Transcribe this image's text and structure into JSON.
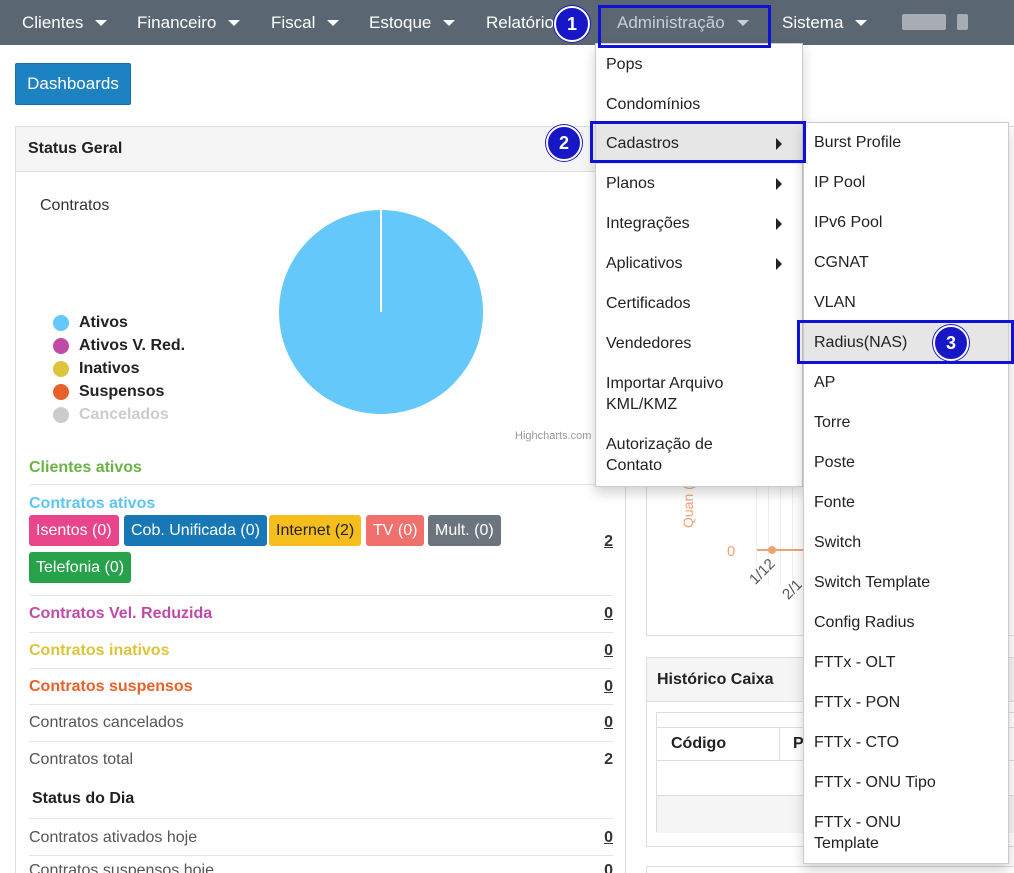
{
  "nav": {
    "items": [
      {
        "label": "Clientes"
      },
      {
        "label": "Financeiro"
      },
      {
        "label": "Fiscal"
      },
      {
        "label": "Estoque"
      },
      {
        "label": "Relatórios"
      },
      {
        "label": "Administração"
      },
      {
        "label": "Sistema"
      }
    ]
  },
  "steps": [
    "1",
    "2",
    "3"
  ],
  "dashboard_button": "Dashboards",
  "status_panel": {
    "title": "Status Geral",
    "chart_title": "Contratos",
    "credits": "Highcharts.com"
  },
  "chart_data": {
    "type": "pie",
    "title": "Contratos",
    "series": [
      {
        "name": "Ativos",
        "value": 2,
        "color": "#64c8fa"
      },
      {
        "name": "Ativos V. Red.",
        "value": 0,
        "color": "#c04aa8"
      },
      {
        "name": "Inativos",
        "value": 0,
        "color": "#dcc43c"
      },
      {
        "name": "Suspensos",
        "value": 0,
        "color": "#e8612a"
      },
      {
        "name": "Cancelados",
        "value": 0,
        "color": "#cccccc"
      }
    ]
  },
  "rows": {
    "clientes_ativos": "Clientes ativos",
    "contratos_ativos": "Contratos ativos",
    "contratos_ativos_val": "2",
    "vel_reduzida": "Contratos Vel. Reduzida",
    "vel_reduzida_val": "0",
    "inativos": "Contratos inativos",
    "inativos_val": "0",
    "suspensos": "Contratos suspensos",
    "suspensos_val": "0",
    "cancelados": "Contratos cancelados",
    "cancelados_val": "0",
    "total": "Contratos total",
    "total_val": "2",
    "status_dia": "Status do Dia",
    "ativados_hoje": "Contratos ativados hoje",
    "ativados_hoje_val": "0",
    "suspensos_hoje": "Contratos suspensos hoje",
    "suspensos_hoje_val": "0"
  },
  "tags": [
    {
      "label": "Isentos (0)",
      "color": "#e8458b"
    },
    {
      "label": "Cob. Unificada (0)",
      "color": "#1878b6"
    },
    {
      "label": "Internet (2)",
      "color": "#f5be1c"
    },
    {
      "label": "TV (0)",
      "color": "#f0706e"
    },
    {
      "label": "Mult. (0)",
      "color": "#6c757d"
    },
    {
      "label": "Telefonia (0)",
      "color": "#28a24a"
    }
  ],
  "right": {
    "historico_caixa": "Histórico Caixa",
    "col_codigo": "Código",
    "col_p": "P",
    "axis_zero": "0",
    "axis_date1": "1/12",
    "axis_date2": "2/1",
    "axis_label": "Quan (cac"
  },
  "admin_menu": [
    {
      "label": "Pops"
    },
    {
      "label": "Condomínios"
    },
    {
      "label": "Cadastros"
    },
    {
      "label": "Planos"
    },
    {
      "label": "Integrações"
    },
    {
      "label": "Aplicativos"
    },
    {
      "label": "Certificados"
    },
    {
      "label": "Vendedores"
    },
    {
      "label": "Importar Arquivo KML/KMZ"
    },
    {
      "label": "Autorização de Contato"
    }
  ],
  "cadastros_menu": [
    {
      "label": "Burst Profile"
    },
    {
      "label": "IP Pool"
    },
    {
      "label": "IPv6 Pool"
    },
    {
      "label": "CGNAT"
    },
    {
      "label": "VLAN"
    },
    {
      "label": "Radius(NAS)"
    },
    {
      "label": "AP"
    },
    {
      "label": "Torre"
    },
    {
      "label": "Poste"
    },
    {
      "label": "Fonte"
    },
    {
      "label": "Switch"
    },
    {
      "label": "Switch Template"
    },
    {
      "label": "Config Radius"
    },
    {
      "label": "FTTx - OLT"
    },
    {
      "label": "FTTx - PON"
    },
    {
      "label": "FTTx - CTO"
    },
    {
      "label": "FTTx - ONU Tipo"
    },
    {
      "label": "FTTx - ONU Template"
    }
  ]
}
